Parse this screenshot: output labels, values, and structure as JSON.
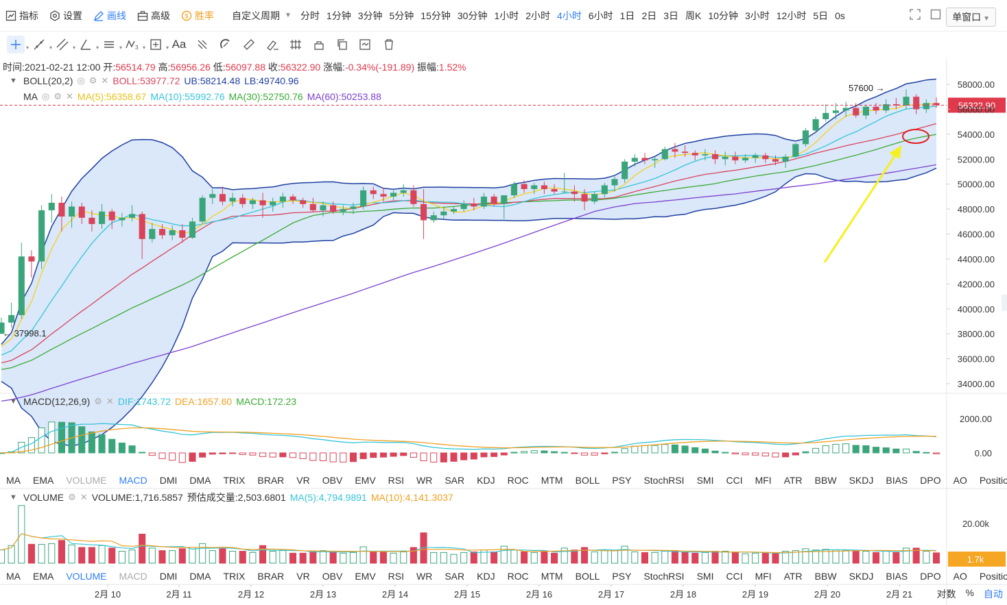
{
  "toolbar": {
    "left": [
      {
        "id": "indicators",
        "label": "指标",
        "icon": "chart-icon"
      },
      {
        "id": "settings",
        "label": "设置",
        "icon": "gear-icon"
      },
      {
        "id": "draw",
        "label": "画线",
        "icon": "pen-icon"
      },
      {
        "id": "advanced",
        "label": "高级",
        "icon": "briefcase-icon"
      },
      {
        "id": "winrate",
        "label": "胜率",
        "icon": "coin-icon"
      }
    ],
    "custom_period": "自定义周期",
    "periods": [
      "分时",
      "1分钟",
      "3分钟",
      "5分钟",
      "15分钟",
      "30分钟",
      "1小时",
      "2小时",
      "4小时",
      "6小时",
      "1日",
      "2日",
      "3日",
      "周K",
      "10分钟",
      "3小时",
      "12小时",
      "5日",
      "0s"
    ],
    "active_period": "4小时",
    "window_mode": "单窗口"
  },
  "ohlc": {
    "time_label": "时间:",
    "time": "2021-02-21 12:00",
    "open_label": "开:",
    "open": "56514.79",
    "high_label": "高:",
    "high": "56956.26",
    "low_label": "低:",
    "low": "56097.88",
    "close_label": "收:",
    "close": "56322.90",
    "change_label": "涨幅:",
    "change": "-0.34%(-191.89)",
    "amp_label": "振幅:",
    "amp": "1.52%"
  },
  "boll": {
    "name": "BOLL(20,2)",
    "mid": "BOLL:53977.72",
    "ub": "UB:58214.48",
    "lb": "LB:49740.96"
  },
  "ma": {
    "name": "MA",
    "ma5": "MA(5):56358.67",
    "ma10": "MA(10):55992.76",
    "ma30": "MA(30):52750.76",
    "ma60": "MA(60):50253.88"
  },
  "macd": {
    "name": "MACD(12,26,9)",
    "dif": "DIF:1743.72",
    "dea": "DEA:1657.60",
    "macd": "MACD:172.23"
  },
  "volume": {
    "name": "VOLUME",
    "vol": "VOLUME:1,716.5857",
    "est": "预估成交量:2,503.6801",
    "ma5": "MA(5):4,794.9891",
    "ma10": "MA(10):4,141.3037"
  },
  "indicator_tabs": [
    "MA",
    "EMA",
    "VOLUME",
    "MACD",
    "DMI",
    "DMA",
    "TRIX",
    "BRAR",
    "VR",
    "OBV",
    "EMV",
    "RSI",
    "WR",
    "SAR",
    "KDJ",
    "ROC",
    "MTM",
    "BOLL",
    "PSY",
    "StochRSI",
    "SMI",
    "CCI",
    "MFI",
    "ATR",
    "BBW",
    "SKDJ",
    "BIAS",
    "DPO",
    "AO",
    "Position"
  ],
  "tabs_row1_active": "MACD",
  "tabs_row1_dim": [
    "VOLUME"
  ],
  "tabs_row2_active": "VOLUME",
  "tabs_row2_dim": [
    "MACD"
  ],
  "bottom_right": {
    "log": "对数",
    "pct": "%",
    "auto": "自动"
  },
  "colors": {
    "up": "#3aa57a",
    "down": "#d9445a",
    "boll_fill": "#cfe0f7",
    "boll_band": "#1f3fa0",
    "ma5": "#f5d020",
    "ma10": "#35c4d8",
    "ma30": "#3aaa35",
    "ma60": "#7b3fcf",
    "mid": "#d9445a",
    "active": "#2f7df6"
  },
  "chart_data": [
    {
      "type": "candlestick",
      "title": "",
      "x_labels": [
        "2月 10",
        "2月 11",
        "2月 12",
        "2月 13",
        "2月 14",
        "2月 15",
        "2月 16",
        "2月 17",
        "2月 18",
        "2月 19",
        "2月 20",
        "2月 21"
      ],
      "y_ticks": [
        "58000.00",
        "56000.00",
        "54000.00",
        "52000.00",
        "50000.00",
        "48000.00",
        "46000.00",
        "44000.00",
        "42000.00",
        "40000.00",
        "38000.00",
        "36000.00",
        "34000.00"
      ],
      "ylim": [
        33000,
        59200
      ],
      "current_price_label": "56322.90",
      "annotations": {
        "high_marker": "57600",
        "low_marker": "37998.1"
      },
      "candles": [
        [
          38000,
          39300,
          37998,
          38900
        ],
        [
          38900,
          40500,
          38500,
          39500
        ],
        [
          39500,
          45300,
          39200,
          44200
        ],
        [
          44200,
          44700,
          42500,
          43800
        ],
        [
          43800,
          48300,
          43200,
          47900
        ],
        [
          47900,
          49200,
          46900,
          48500
        ],
        [
          48500,
          49000,
          46200,
          47400
        ],
        [
          47400,
          48600,
          46500,
          48200
        ],
        [
          48200,
          48500,
          46800,
          47300
        ],
        [
          47300,
          47900,
          46200,
          46800
        ],
        [
          46800,
          48400,
          46400,
          47800
        ],
        [
          47800,
          48000,
          46400,
          47100
        ],
        [
          47100,
          47700,
          46600,
          47300
        ],
        [
          47300,
          48300,
          47000,
          47600
        ],
        [
          47600,
          47800,
          44000,
          45600
        ],
        [
          45600,
          46900,
          45300,
          46400
        ],
        [
          46400,
          46800,
          45600,
          45900
        ],
        [
          45900,
          46700,
          45500,
          46300
        ],
        [
          46300,
          46800,
          45300,
          45700
        ],
        [
          45700,
          47300,
          45600,
          47000
        ],
        [
          47000,
          49100,
          46800,
          48900
        ],
        [
          48900,
          49600,
          48400,
          49200
        ],
        [
          49200,
          49800,
          48300,
          48600
        ],
        [
          48600,
          49300,
          48200,
          48900
        ],
        [
          48900,
          49200,
          48100,
          48400
        ],
        [
          48400,
          48900,
          48000,
          48700
        ],
        [
          48700,
          49300,
          47300,
          48300
        ],
        [
          48300,
          48900,
          47800,
          48600
        ],
        [
          48600,
          49300,
          48100,
          49000
        ],
        [
          49000,
          49200,
          48400,
          48700
        ],
        [
          48700,
          48900,
          48100,
          48400
        ],
        [
          48400,
          48900,
          47800,
          47900
        ],
        [
          47900,
          48600,
          47400,
          48300
        ],
        [
          48300,
          48600,
          47600,
          47800
        ],
        [
          47800,
          48300,
          47500,
          48000
        ],
        [
          48000,
          48500,
          47600,
          48200
        ],
        [
          48200,
          49800,
          48000,
          49500
        ],
        [
          49500,
          49800,
          48800,
          49200
        ],
        [
          49200,
          49700,
          48600,
          49000
        ],
        [
          49000,
          49500,
          48700,
          49300
        ],
        [
          49300,
          50000,
          49000,
          49500
        ],
        [
          49500,
          49900,
          48200,
          48400
        ],
        [
          48400,
          49600,
          45600,
          47100
        ],
        [
          47100,
          47800,
          46900,
          47500
        ],
        [
          47500,
          48100,
          47200,
          47800
        ],
        [
          47800,
          48200,
          47600,
          48000
        ],
        [
          48000,
          48700,
          47800,
          48400
        ],
        [
          48400,
          48900,
          47900,
          48200
        ],
        [
          48200,
          49300,
          48000,
          49000
        ],
        [
          49000,
          49200,
          48200,
          48400
        ],
        [
          48400,
          49100,
          47200,
          49100
        ],
        [
          49100,
          50200,
          48900,
          50000
        ],
        [
          50000,
          50300,
          49300,
          49600
        ],
        [
          49600,
          50100,
          49200,
          49900
        ],
        [
          49900,
          50200,
          49200,
          49600
        ],
        [
          49600,
          50000,
          49200,
          49400
        ],
        [
          49400,
          50900,
          49300,
          49400
        ],
        [
          49400,
          49900,
          48600,
          49200
        ],
        [
          49200,
          49600,
          47900,
          48600
        ],
        [
          48600,
          49400,
          48400,
          49200
        ],
        [
          49200,
          50100,
          48900,
          49900
        ],
        [
          49900,
          50600,
          49400,
          50400
        ],
        [
          50400,
          52000,
          50100,
          51800
        ],
        [
          51800,
          52400,
          51400,
          52100
        ],
        [
          52100,
          52500,
          51600,
          51900
        ],
        [
          51900,
          52200,
          51300,
          52000
        ],
        [
          52000,
          53000,
          51900,
          52800
        ],
        [
          52800,
          53300,
          52100,
          52600
        ],
        [
          52600,
          53100,
          52200,
          52500
        ],
        [
          52500,
          52700,
          51900,
          52300
        ],
        [
          52300,
          52800,
          51900,
          52400
        ],
        [
          52400,
          52700,
          51600,
          52000
        ],
        [
          52000,
          52600,
          51500,
          52200
        ],
        [
          52200,
          52600,
          51600,
          51900
        ],
        [
          51900,
          52400,
          51700,
          52100
        ],
        [
          52100,
          52500,
          51700,
          52300
        ],
        [
          52300,
          52500,
          51700,
          52000
        ],
        [
          52000,
          52300,
          51500,
          51800
        ],
        [
          51800,
          52400,
          51300,
          52200
        ],
        [
          52200,
          53300,
          52100,
          53200
        ],
        [
          53200,
          54500,
          53000,
          54300
        ],
        [
          54300,
          55400,
          54100,
          55200
        ],
        [
          55200,
          56400,
          55000,
          55700
        ],
        [
          55700,
          56500,
          55200,
          55900
        ],
        [
          55900,
          56600,
          55400,
          56100
        ],
        [
          56100,
          56500,
          55300,
          55500
        ],
        [
          55500,
          56300,
          55200,
          56200
        ],
        [
          56200,
          56500,
          55600,
          55900
        ],
        [
          55900,
          56800,
          55700,
          56400
        ],
        [
          56400,
          56900,
          56000,
          56300
        ],
        [
          56300,
          57600,
          56000,
          57000
        ],
        [
          57000,
          57200,
          55600,
          56000
        ],
        [
          56000,
          56800,
          55700,
          56500
        ],
        [
          56500,
          56950,
          56100,
          56322
        ]
      ]
    },
    {
      "type": "line",
      "name": "MACD",
      "y_ticks": [
        "2000.00",
        "0.00"
      ],
      "series_names": [
        "DIF",
        "DEA",
        "MACD"
      ]
    },
    {
      "type": "bar",
      "name": "VOLUME",
      "y_ticks": [
        "20.00k"
      ],
      "current_volume_label": "1.7k"
    }
  ]
}
